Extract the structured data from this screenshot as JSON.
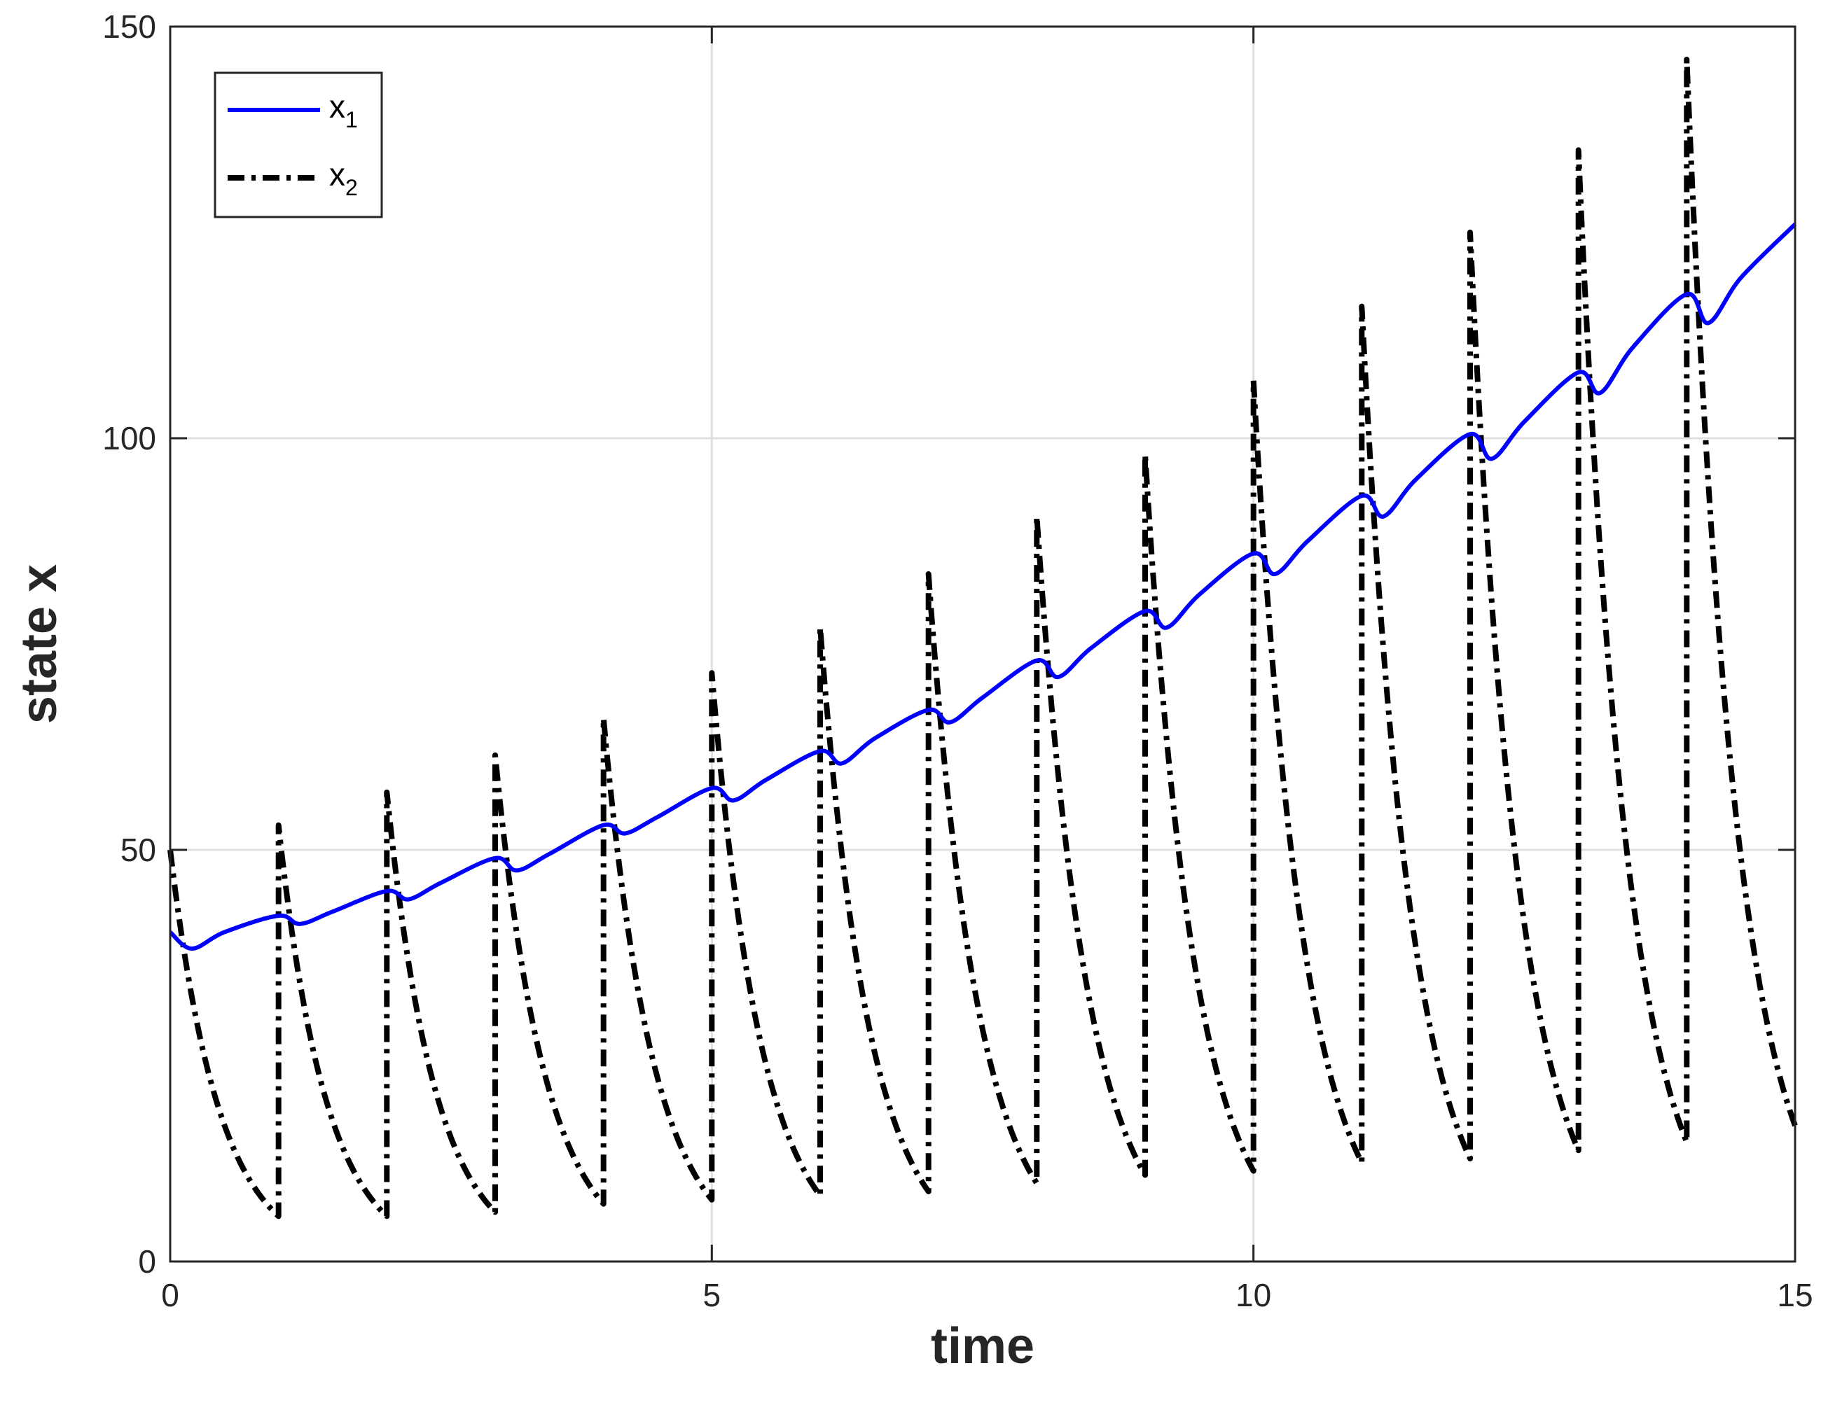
{
  "chart_data": {
    "type": "line",
    "title": "",
    "xlabel": "time",
    "ylabel": "state x",
    "xlim": [
      0,
      15
    ],
    "ylim": [
      0,
      150
    ],
    "xticks": [
      0,
      5,
      10,
      15
    ],
    "yticks": [
      0,
      50,
      100,
      150
    ],
    "grid": true,
    "legend": {
      "placement": "top-left",
      "entries": [
        {
          "base": "x",
          "sub": "1",
          "style": "solid",
          "color": "#0000ff"
        },
        {
          "base": "x",
          "sub": "2",
          "style": "dash-dot",
          "color": "#000000"
        }
      ]
    },
    "series": [
      {
        "name": "x1",
        "label_base": "x",
        "label_sub": "1",
        "color": "#0000ff",
        "style": "solid",
        "x": [
          0,
          0.2,
          0.5,
          1.0,
          1.2,
          1.5,
          2.0,
          2.2,
          2.5,
          3.0,
          3.2,
          3.5,
          4.0,
          4.2,
          4.5,
          5.0,
          5.2,
          5.5,
          6.0,
          6.2,
          6.5,
          7.0,
          7.2,
          7.5,
          8.0,
          8.2,
          8.5,
          9.0,
          9.2,
          9.5,
          10.0,
          10.2,
          10.5,
          11.0,
          11.2,
          11.5,
          12.0,
          12.2,
          12.5,
          13.0,
          13.2,
          13.5,
          14.0,
          14.2,
          14.5,
          15.0
        ],
        "y": [
          40,
          38,
          40,
          42,
          41,
          42.5,
          45,
          44,
          46,
          49,
          47.5,
          49.5,
          53,
          52,
          54,
          57.5,
          56,
          58.5,
          62,
          60.5,
          63.5,
          67,
          65.5,
          68.5,
          73,
          71,
          74.5,
          79,
          77,
          81,
          86,
          83.5,
          87.5,
          93,
          90.5,
          95,
          100.5,
          97.5,
          102,
          108,
          105.5,
          111,
          117.5,
          114,
          119.5,
          126
        ]
      },
      {
        "name": "x2",
        "label_base": "x",
        "label_sub": "2",
        "color": "#000000",
        "style": "dash-dot",
        "impulse_times": [
          1,
          2,
          3,
          4,
          5,
          6,
          7,
          8,
          9,
          10,
          11,
          12,
          13,
          14
        ],
        "start_value": 50,
        "peak_values": [
          53,
          57,
          61.5,
          66,
          71.5,
          77,
          83.5,
          90.5,
          98,
          107,
          116,
          125,
          135,
          146
        ],
        "valley_values": [
          5.5,
          5.5,
          6,
          7,
          7.5,
          8,
          8.5,
          9.5,
          10.5,
          11,
          12,
          12.5,
          13.5,
          14.5
        ],
        "end_value": 16.5
      }
    ]
  }
}
